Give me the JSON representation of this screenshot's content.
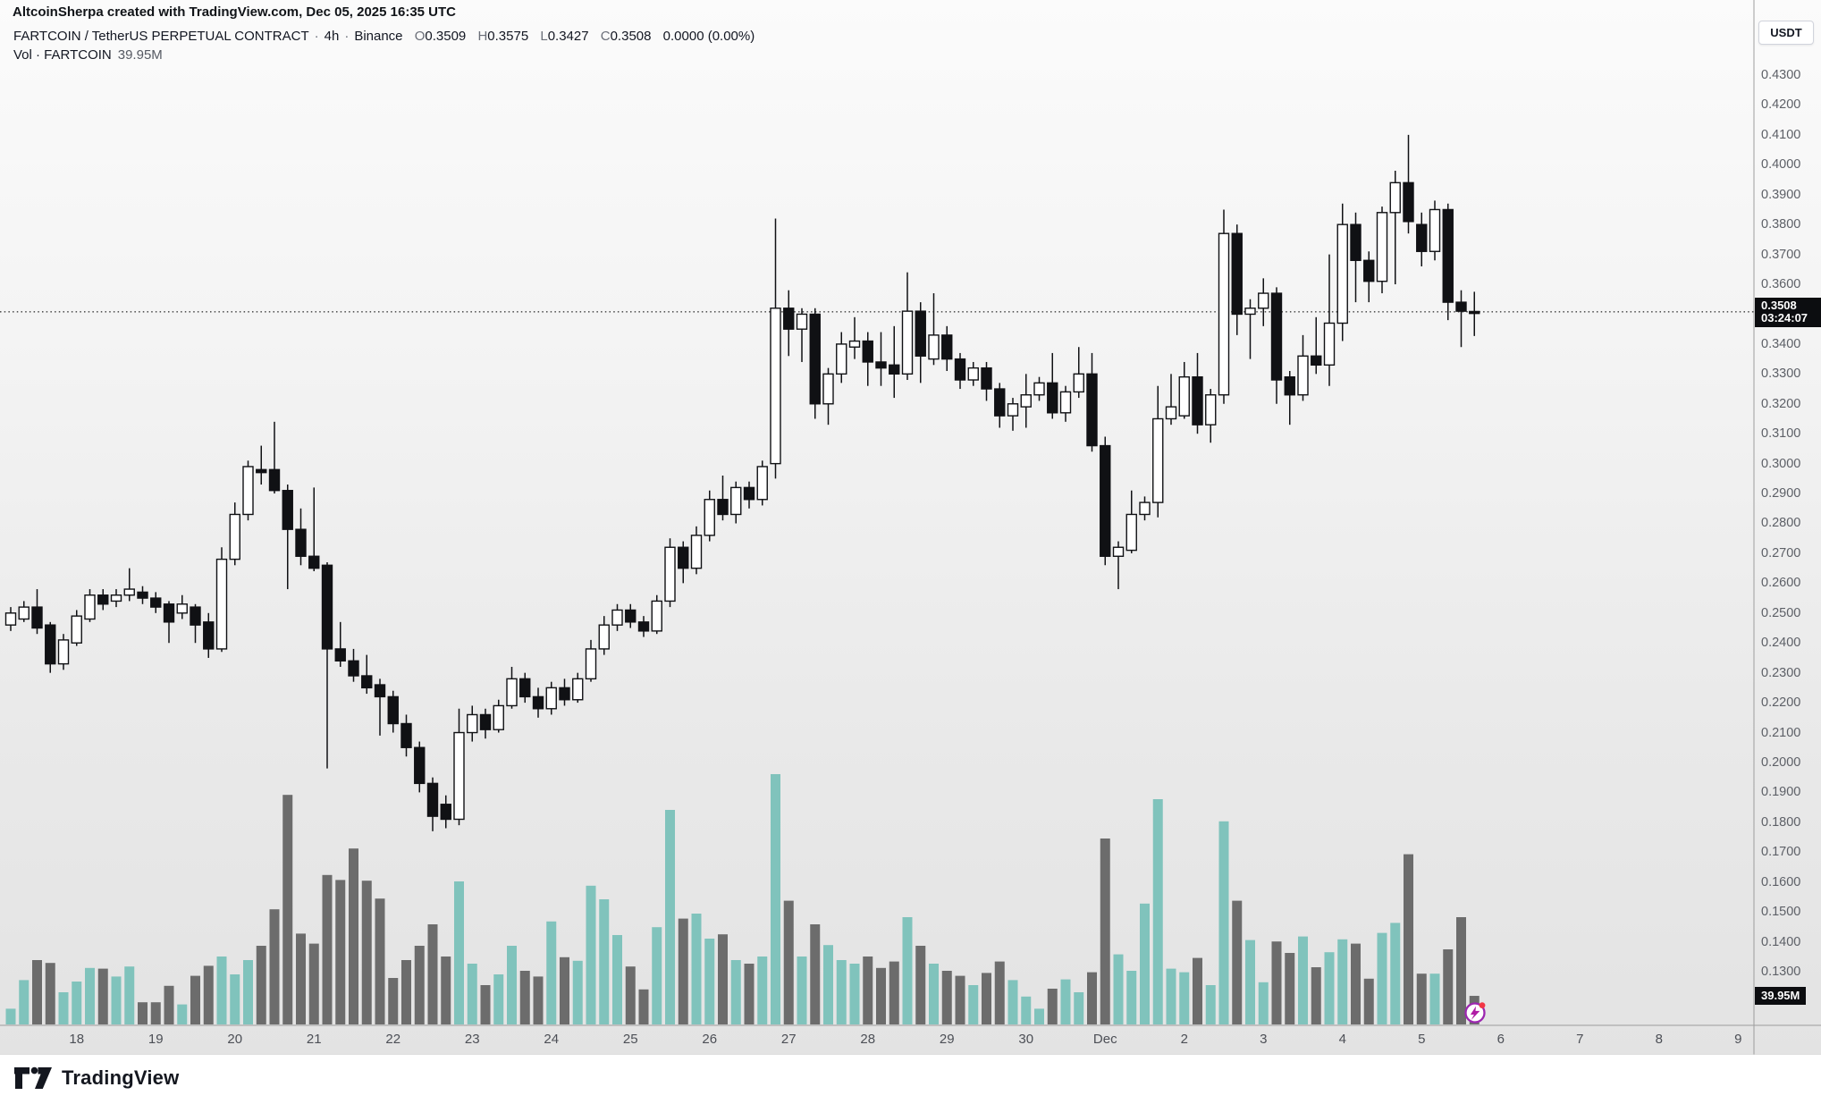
{
  "attribution": "AltcoinSherpa created with TradingView.com, Dec 05, 2025 16:35 UTC",
  "header": {
    "symbol": "FARTCOIN / TetherUS PERPETUAL CONTRACT",
    "sep": "·",
    "interval": "4h",
    "exchange": "Binance",
    "o_label": "O",
    "o": "0.3509",
    "h_label": "H",
    "h": "0.3575",
    "l_label": "L",
    "l": "0.3427",
    "c_label": "C",
    "c": "0.3508",
    "change": "0.0000 (0.00%)",
    "vol_label": "Vol · FARTCOIN",
    "vol_value": "39.95M"
  },
  "price_axis": {
    "currency": "USDT",
    "ticks": [
      "0.4300",
      "0.4200",
      "0.4100",
      "0.4000",
      "0.3900",
      "0.3800",
      "0.3700",
      "0.3600",
      "0.3400",
      "0.3300",
      "0.3200",
      "0.3100",
      "0.3000",
      "0.2900",
      "0.2800",
      "0.2700",
      "0.2600",
      "0.2500",
      "0.2400",
      "0.2300",
      "0.2200",
      "0.2100",
      "0.2000",
      "0.1900",
      "0.1800",
      "0.1700",
      "0.1600",
      "0.1500",
      "0.1400",
      "0.1300"
    ],
    "last_price_label": "0.3508",
    "countdown": "03:24:07"
  },
  "volume_axis": {
    "last_volume_label": "39.95M"
  },
  "time_axis": {
    "ticks": [
      {
        "label": "18",
        "i": 5
      },
      {
        "label": "19",
        "i": 11
      },
      {
        "label": "20",
        "i": 17
      },
      {
        "label": "21",
        "i": 23
      },
      {
        "label": "22",
        "i": 29
      },
      {
        "label": "23",
        "i": 35
      },
      {
        "label": "24",
        "i": 41
      },
      {
        "label": "25",
        "i": 47
      },
      {
        "label": "26",
        "i": 53
      },
      {
        "label": "27",
        "i": 59
      },
      {
        "label": "28",
        "i": 65
      },
      {
        "label": "29",
        "i": 71
      },
      {
        "label": "30",
        "i": 77
      },
      {
        "label": "Dec",
        "i": 83
      },
      {
        "label": "2",
        "i": 89
      },
      {
        "label": "3",
        "i": 95
      },
      {
        "label": "4",
        "i": 101
      },
      {
        "label": "5",
        "i": 107
      },
      {
        "label": "6",
        "i": 113
      },
      {
        "label": "7",
        "i": 119
      },
      {
        "label": "8",
        "i": 125
      },
      {
        "label": "9",
        "i": 131
      }
    ]
  },
  "logo": {
    "text": "TradingView"
  },
  "icons": {
    "boost_icon": "lightning-in-circle",
    "logo_icon": "tradingview-mark"
  },
  "colors": {
    "candle_up_fill": "#ffffff",
    "candle_up_border": "#101114",
    "candle_down": "#101114",
    "vol_up": "#80c3bc",
    "vol_down": "#6c6c6c",
    "badge_bg": "#0c0d10",
    "badge_text": "#ffffff",
    "axis_border": "#9d9d9d",
    "dotted_line": "#3a3a3a",
    "accent_purple": "#9c27b0",
    "bolt_magenta": "#b01ba5",
    "dot_red": "#f23645"
  },
  "chart_data": {
    "type": "candlestick+volume",
    "title": "FARTCOIN / TetherUS PERPETUAL CONTRACT, 4h, Binance",
    "start": "Nov 17 2025 04:00 UTC",
    "interval_hours": 4,
    "price_axis_range": [
      0.13,
      0.43
    ],
    "volume_unit": "M",
    "last_price": 0.3508,
    "last_volume": 39.95,
    "columns": [
      "open",
      "high",
      "low",
      "close",
      "volume_M"
    ],
    "candles": [
      [
        0.246,
        0.252,
        0.244,
        0.25,
        22
      ],
      [
        0.248,
        0.254,
        0.247,
        0.252,
        62
      ],
      [
        0.252,
        0.258,
        0.243,
        0.245,
        90
      ],
      [
        0.246,
        0.247,
        0.23,
        0.233,
        86
      ],
      [
        0.233,
        0.243,
        0.231,
        0.241,
        45
      ],
      [
        0.24,
        0.251,
        0.239,
        0.249,
        60
      ],
      [
        0.248,
        0.258,
        0.247,
        0.256,
        79
      ],
      [
        0.256,
        0.258,
        0.251,
        0.253,
        78
      ],
      [
        0.254,
        0.258,
        0.252,
        0.256,
        67
      ],
      [
        0.256,
        0.265,
        0.254,
        0.258,
        81
      ],
      [
        0.257,
        0.259,
        0.253,
        0.255,
        31
      ],
      [
        0.255,
        0.257,
        0.25,
        0.252,
        31
      ],
      [
        0.253,
        0.254,
        0.24,
        0.247,
        54
      ],
      [
        0.25,
        0.256,
        0.248,
        0.253,
        28
      ],
      [
        0.252,
        0.253,
        0.24,
        0.246,
        68
      ],
      [
        0.247,
        0.25,
        0.235,
        0.238,
        82
      ],
      [
        0.238,
        0.272,
        0.237,
        0.268,
        95
      ],
      [
        0.268,
        0.287,
        0.266,
        0.283,
        70
      ],
      [
        0.283,
        0.301,
        0.281,
        0.299,
        90
      ],
      [
        0.298,
        0.306,
        0.293,
        0.297,
        110
      ],
      [
        0.298,
        0.314,
        0.29,
        0.291,
        161
      ],
      [
        0.291,
        0.293,
        0.258,
        0.278,
        321
      ],
      [
        0.278,
        0.285,
        0.266,
        0.269,
        127
      ],
      [
        0.269,
        0.292,
        0.264,
        0.265,
        113
      ],
      [
        0.266,
        0.267,
        0.198,
        0.238,
        209
      ],
      [
        0.238,
        0.247,
        0.232,
        0.234,
        202
      ],
      [
        0.234,
        0.238,
        0.227,
        0.229,
        246
      ],
      [
        0.229,
        0.236,
        0.223,
        0.225,
        201
      ],
      [
        0.226,
        0.228,
        0.209,
        0.222,
        176
      ],
      [
        0.222,
        0.224,
        0.21,
        0.213,
        65
      ],
      [
        0.213,
        0.216,
        0.202,
        0.205,
        90
      ],
      [
        0.205,
        0.207,
        0.19,
        0.193,
        110
      ],
      [
        0.193,
        0.195,
        0.177,
        0.182,
        140
      ],
      [
        0.186,
        0.189,
        0.178,
        0.181,
        95
      ],
      [
        0.181,
        0.218,
        0.179,
        0.21,
        200
      ],
      [
        0.21,
        0.219,
        0.207,
        0.216,
        85
      ],
      [
        0.216,
        0.218,
        0.208,
        0.211,
        55
      ],
      [
        0.211,
        0.221,
        0.21,
        0.219,
        70
      ],
      [
        0.219,
        0.232,
        0.218,
        0.228,
        110
      ],
      [
        0.228,
        0.23,
        0.22,
        0.222,
        75
      ],
      [
        0.222,
        0.225,
        0.215,
        0.218,
        67
      ],
      [
        0.218,
        0.227,
        0.216,
        0.225,
        144
      ],
      [
        0.225,
        0.228,
        0.219,
        0.221,
        94
      ],
      [
        0.221,
        0.23,
        0.22,
        0.228,
        89
      ],
      [
        0.228,
        0.241,
        0.227,
        0.238,
        194
      ],
      [
        0.238,
        0.249,
        0.236,
        0.246,
        175
      ],
      [
        0.246,
        0.253,
        0.244,
        0.251,
        125
      ],
      [
        0.251,
        0.253,
        0.245,
        0.247,
        81
      ],
      [
        0.247,
        0.249,
        0.242,
        0.244,
        49
      ],
      [
        0.244,
        0.256,
        0.243,
        0.254,
        136
      ],
      [
        0.254,
        0.275,
        0.252,
        0.272,
        300
      ],
      [
        0.272,
        0.274,
        0.26,
        0.265,
        148
      ],
      [
        0.265,
        0.279,
        0.263,
        0.276,
        155
      ],
      [
        0.276,
        0.291,
        0.274,
        0.288,
        120
      ],
      [
        0.288,
        0.296,
        0.281,
        0.283,
        126
      ],
      [
        0.283,
        0.294,
        0.28,
        0.292,
        90
      ],
      [
        0.292,
        0.294,
        0.285,
        0.288,
        85
      ],
      [
        0.288,
        0.301,
        0.286,
        0.299,
        95
      ],
      [
        0.3,
        0.382,
        0.295,
        0.352,
        350
      ],
      [
        0.352,
        0.358,
        0.336,
        0.345,
        173
      ],
      [
        0.345,
        0.352,
        0.334,
        0.35,
        95
      ],
      [
        0.35,
        0.352,
        0.315,
        0.32,
        140
      ],
      [
        0.32,
        0.332,
        0.313,
        0.33,
        111
      ],
      [
        0.33,
        0.344,
        0.327,
        0.34,
        90
      ],
      [
        0.339,
        0.349,
        0.335,
        0.341,
        85
      ],
      [
        0.341,
        0.344,
        0.326,
        0.334,
        95
      ],
      [
        0.334,
        0.344,
        0.326,
        0.332,
        79
      ],
      [
        0.333,
        0.346,
        0.322,
        0.33,
        88
      ],
      [
        0.33,
        0.364,
        0.328,
        0.351,
        150
      ],
      [
        0.351,
        0.354,
        0.327,
        0.336,
        110
      ],
      [
        0.335,
        0.357,
        0.333,
        0.343,
        85
      ],
      [
        0.343,
        0.346,
        0.331,
        0.335,
        75
      ],
      [
        0.335,
        0.337,
        0.325,
        0.328,
        68
      ],
      [
        0.328,
        0.334,
        0.326,
        0.332,
        55
      ],
      [
        0.332,
        0.334,
        0.321,
        0.325,
        72
      ],
      [
        0.325,
        0.327,
        0.312,
        0.316,
        88
      ],
      [
        0.316,
        0.322,
        0.311,
        0.32,
        62
      ],
      [
        0.319,
        0.33,
        0.312,
        0.323,
        39
      ],
      [
        0.323,
        0.329,
        0.321,
        0.327,
        22
      ],
      [
        0.327,
        0.337,
        0.315,
        0.317,
        50
      ],
      [
        0.317,
        0.326,
        0.314,
        0.324,
        63
      ],
      [
        0.324,
        0.339,
        0.322,
        0.33,
        45
      ],
      [
        0.33,
        0.337,
        0.304,
        0.306,
        73
      ],
      [
        0.306,
        0.309,
        0.266,
        0.269,
        260
      ],
      [
        0.269,
        0.274,
        0.258,
        0.272,
        98
      ],
      [
        0.271,
        0.291,
        0.27,
        0.283,
        75
      ],
      [
        0.283,
        0.289,
        0.281,
        0.287,
        169
      ],
      [
        0.287,
        0.326,
        0.282,
        0.315,
        315
      ],
      [
        0.315,
        0.33,
        0.313,
        0.319,
        78
      ],
      [
        0.316,
        0.334,
        0.315,
        0.329,
        73
      ],
      [
        0.329,
        0.337,
        0.31,
        0.313,
        93
      ],
      [
        0.313,
        0.325,
        0.307,
        0.323,
        55
      ],
      [
        0.323,
        0.385,
        0.32,
        0.377,
        284
      ],
      [
        0.377,
        0.38,
        0.343,
        0.35,
        173
      ],
      [
        0.35,
        0.355,
        0.335,
        0.352,
        118
      ],
      [
        0.352,
        0.362,
        0.346,
        0.357,
        59
      ],
      [
        0.357,
        0.359,
        0.32,
        0.328,
        116
      ],
      [
        0.329,
        0.331,
        0.313,
        0.323,
        100
      ],
      [
        0.323,
        0.343,
        0.321,
        0.336,
        123
      ],
      [
        0.336,
        0.349,
        0.33,
        0.333,
        80
      ],
      [
        0.333,
        0.37,
        0.326,
        0.347,
        101
      ],
      [
        0.347,
        0.387,
        0.341,
        0.38,
        119
      ],
      [
        0.38,
        0.384,
        0.354,
        0.368,
        113
      ],
      [
        0.368,
        0.371,
        0.354,
        0.361,
        64
      ],
      [
        0.361,
        0.386,
        0.357,
        0.384,
        128
      ],
      [
        0.384,
        0.398,
        0.36,
        0.394,
        142
      ],
      [
        0.394,
        0.41,
        0.377,
        0.381,
        238
      ],
      [
        0.38,
        0.384,
        0.366,
        0.371,
        71
      ],
      [
        0.371,
        0.388,
        0.368,
        0.385,
        71
      ],
      [
        0.385,
        0.387,
        0.348,
        0.354,
        105
      ],
      [
        0.354,
        0.358,
        0.339,
        0.351,
        150
      ],
      [
        0.3509,
        0.3575,
        0.3427,
        0.3508,
        39.95
      ]
    ]
  }
}
